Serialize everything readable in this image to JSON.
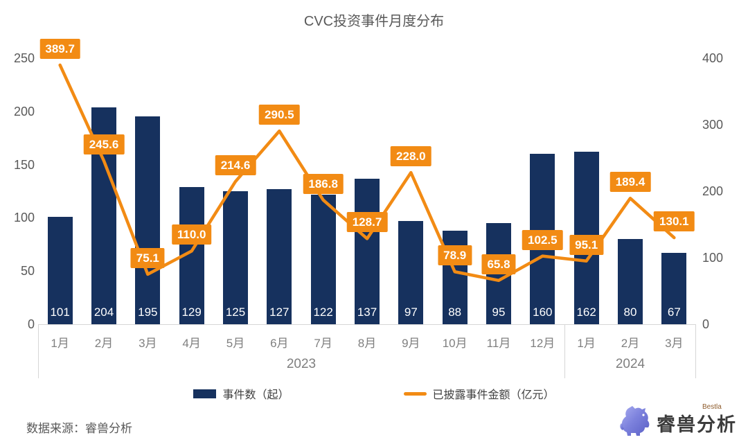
{
  "title": "CVC投资事件月度分布",
  "legend": {
    "bars": "事件数（起）",
    "line": "已披露事件金额（亿元）"
  },
  "footer": {
    "source": "数据来源：睿兽分析",
    "logo_text": "睿兽分析",
    "logo_sub": "Bestla"
  },
  "colors": {
    "bar": "#16315e",
    "line": "#f28b14",
    "label_bg": "#f28b14",
    "axis_text": "#595959",
    "category_text": "#7f7f7f"
  },
  "icons": {
    "logo_beast": "bestla-beast-icon"
  },
  "chart_data": {
    "type": "combo",
    "title": "CVC投资事件月度分布",
    "categories": [
      "1月",
      "2月",
      "3月",
      "4月",
      "5月",
      "6月",
      "7月",
      "8月",
      "9月",
      "10月",
      "11月",
      "12月",
      "1月",
      "2月",
      "3月"
    ],
    "year_groups": [
      {
        "label": "2023",
        "count": 12
      },
      {
        "label": "2024",
        "count": 3
      }
    ],
    "series": [
      {
        "name": "事件数（起）",
        "type": "bar",
        "axis": "left",
        "values": [
          101,
          204,
          195,
          129,
          125,
          127,
          122,
          137,
          97,
          88,
          95,
          160,
          162,
          80,
          67
        ]
      },
      {
        "name": "已披露事件金额（亿元）",
        "type": "line",
        "axis": "right",
        "values": [
          389.7,
          245.6,
          75.1,
          110.0,
          214.6,
          290.5,
          186.8,
          128.7,
          228.0,
          78.9,
          65.8,
          102.5,
          95.1,
          189.4,
          130.1
        ]
      }
    ],
    "left_axis": {
      "min": 0,
      "max": 250,
      "ticks": [
        0,
        50,
        100,
        150,
        200,
        250
      ]
    },
    "right_axis": {
      "min": 0,
      "max": 400,
      "ticks": [
        0,
        100,
        200,
        300,
        400
      ]
    },
    "grid": false,
    "legend_position": "bottom",
    "data_label_decimals_line": 1
  }
}
